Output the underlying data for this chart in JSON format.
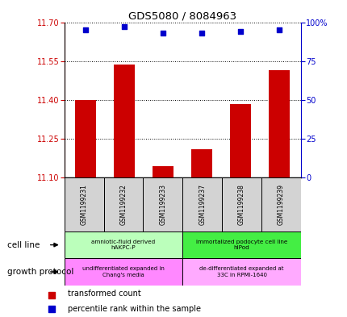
{
  "title": "GDS5080 / 8084963",
  "samples": [
    "GSM1199231",
    "GSM1199232",
    "GSM1199233",
    "GSM1199237",
    "GSM1199238",
    "GSM1199239"
  ],
  "bar_values": [
    11.4,
    11.535,
    11.145,
    11.21,
    11.385,
    11.515
  ],
  "percentile_values": [
    95,
    97,
    93,
    93,
    94,
    95
  ],
  "ylim_left": [
    11.1,
    11.7
  ],
  "ylim_right": [
    0,
    100
  ],
  "yticks_left": [
    11.1,
    11.25,
    11.4,
    11.55,
    11.7
  ],
  "yticks_right": [
    0,
    25,
    50,
    75,
    100
  ],
  "bar_color": "#cc0000",
  "dot_color": "#0000cc",
  "bar_width": 0.55,
  "cell_line_groups": [
    {
      "label": "amniotic-fluid derived\nhAKPC-P",
      "start": 0,
      "end": 3,
      "color": "#bbffbb"
    },
    {
      "label": "immortalized podocyte cell line\nhIPod",
      "start": 3,
      "end": 6,
      "color": "#44ee44"
    }
  ],
  "growth_protocol_groups": [
    {
      "label": "undifferentiated expanded in\nChang's media",
      "start": 0,
      "end": 3,
      "color": "#ff88ff"
    },
    {
      "label": "de-differentiated expanded at\n33C in RPMI-1640",
      "start": 3,
      "end": 6,
      "color": "#ffaaff"
    }
  ],
  "cell_line_label": "cell line",
  "growth_protocol_label": "growth protocol",
  "legend_bar_label": "transformed count",
  "legend_dot_label": "percentile rank within the sample",
  "tick_color_left": "#cc0000",
  "tick_color_right": "#0000cc"
}
